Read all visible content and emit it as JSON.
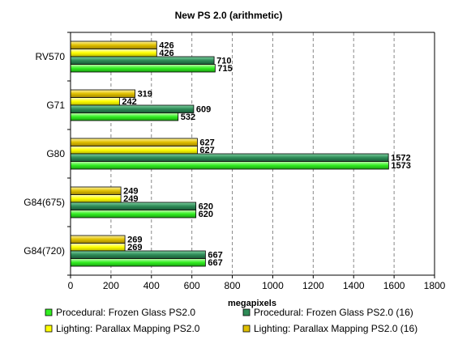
{
  "chart_data": {
    "type": "bar",
    "orientation": "horizontal",
    "title": "New PS 2.0 (arithmetic)",
    "xlabel": "megapixels",
    "ylabel": "",
    "xlim": [
      0,
      1800
    ],
    "x_ticks": [
      0,
      200,
      400,
      600,
      800,
      1000,
      1200,
      1400,
      1600,
      1800
    ],
    "grid": "vertical dashed",
    "legend_position": "bottom",
    "categories": [
      "RV570",
      "G71",
      "G80",
      "G84(675)",
      "G84(720)"
    ],
    "series": [
      {
        "name": "Lighting: Parallax Mapping PS2.0 (16)",
        "color": "#e0c000",
        "values": [
          426,
          319,
          627,
          249,
          269
        ]
      },
      {
        "name": "Lighting: Parallax Mapping PS2.0",
        "color": "#ffff00",
        "values": [
          426,
          242,
          627,
          249,
          269
        ]
      },
      {
        "name": "Procedural: Frozen Glass PS2.0 (16)",
        "color": "#2e8b57",
        "values": [
          710,
          609,
          1572,
          620,
          667
        ]
      },
      {
        "name": "Procedural: Frozen Glass PS2.0",
        "color": "#33ee22",
        "values": [
          715,
          532,
          1573,
          620,
          667
        ]
      }
    ],
    "legend_order": [
      "Procedural: Frozen Glass PS2.0",
      "Procedural: Frozen Glass PS2.0 (16)",
      "Lighting: Parallax Mapping PS2.0",
      "Lighting: Parallax Mapping PS2.0 (16)"
    ]
  }
}
